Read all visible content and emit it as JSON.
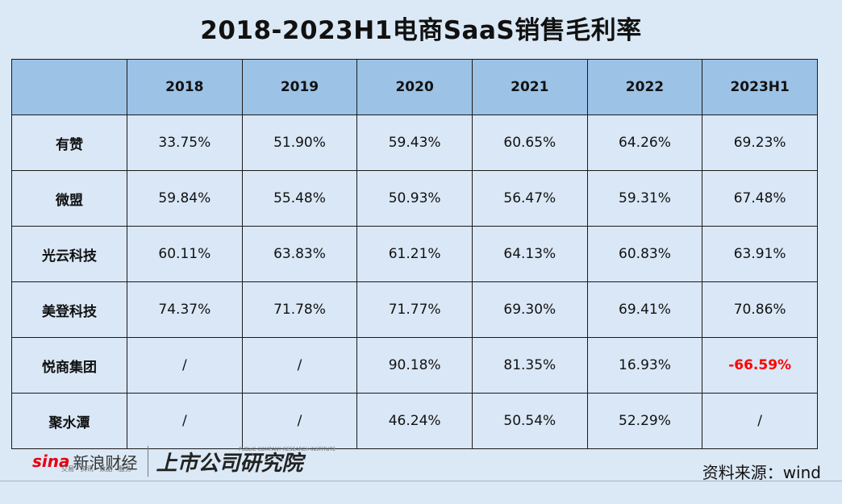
{
  "title": "2018-2023H1电商SaaS销售毛利率",
  "colors": {
    "header_bg": "#9cc2e6",
    "negative": "#ff0000",
    "page_bg": "#dbe8f5"
  },
  "chart_data": {
    "type": "table",
    "columns": [
      "",
      "2018",
      "2019",
      "2020",
      "2021",
      "2022",
      "2023H1"
    ],
    "rows": [
      [
        "有赞",
        "33.75%",
        "51.90%",
        "59.43%",
        "60.65%",
        "64.26%",
        "69.23%"
      ],
      [
        "微盟",
        "59.84%",
        "55.48%",
        "50.93%",
        "56.47%",
        "59.31%",
        "67.48%"
      ],
      [
        "光云科技",
        "60.11%",
        "63.83%",
        "61.21%",
        "64.13%",
        "60.83%",
        "63.91%"
      ],
      [
        "美登科技",
        "74.37%",
        "71.78%",
        "71.77%",
        "69.30%",
        "69.41%",
        "70.86%"
      ],
      [
        "悦商集团",
        "/",
        "/",
        "90.18%",
        "81.35%",
        "16.93%",
        "-66.59%"
      ],
      [
        "聚水潭",
        "/",
        "/",
        "46.24%",
        "50.54%",
        "52.29%",
        "/"
      ]
    ]
  },
  "footer": {
    "source": "资料来源：wind",
    "logo_sina": "sina",
    "logo_sina_cn": "新浪财经",
    "logo_sina_sub": "交易 · 资讯 · 数据 · 服务",
    "logo_institute": "上市公司研究院",
    "logo_institute_sub": "PUBLIC COMPANY RESEARCH INSTITUTE"
  }
}
